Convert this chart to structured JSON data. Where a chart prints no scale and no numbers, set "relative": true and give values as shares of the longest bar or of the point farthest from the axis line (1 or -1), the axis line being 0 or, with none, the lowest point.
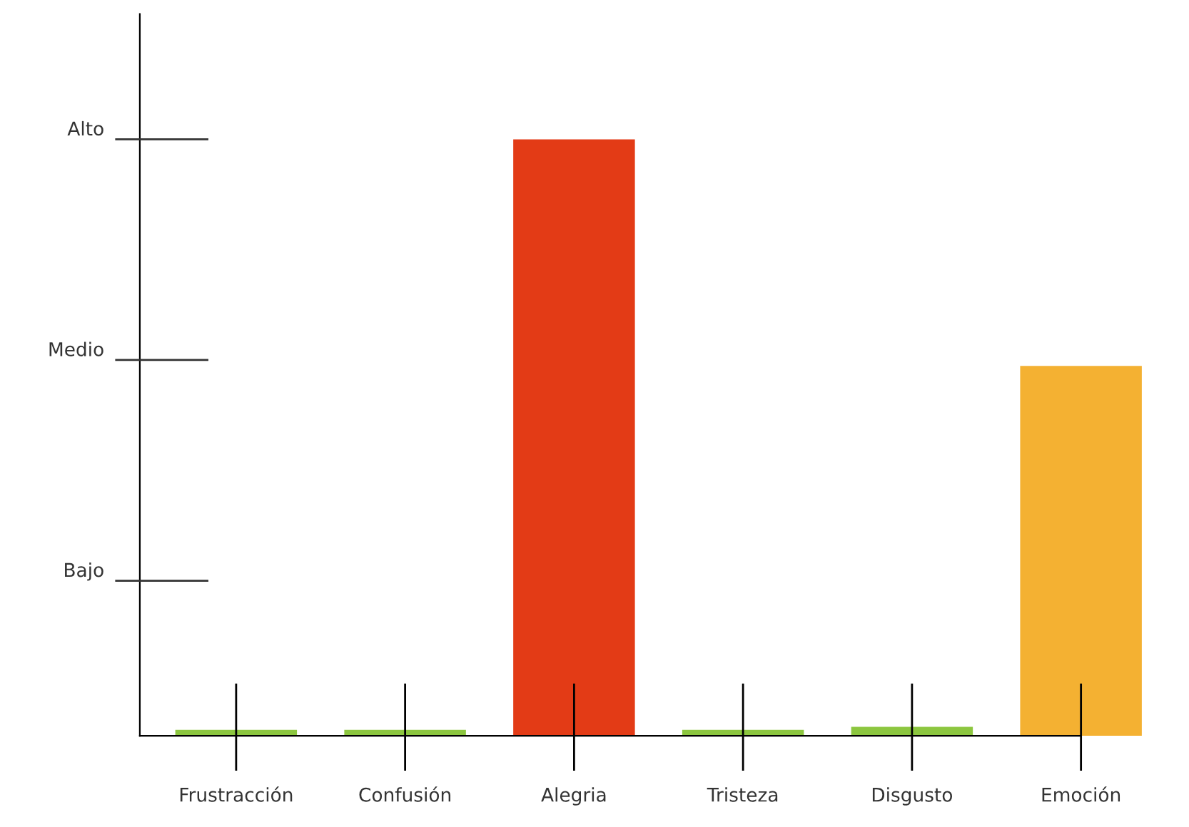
{
  "chart_data": {
    "type": "bar",
    "relative": true,
    "categories": [
      "Frustracción",
      "Confusión",
      "Alegria",
      "Tristeza",
      "Disgusto",
      "Emoción"
    ],
    "values": [
      0.01,
      0.01,
      1,
      0.01,
      0.015,
      0.62
    ],
    "colors": [
      "#8cc63f",
      "#8cc63f",
      "#e33b16",
      "#8cc63f",
      "#8cc63f",
      "#f4b132"
    ],
    "ref_lines": [
      {
        "axis": "y",
        "value": 0.26,
        "label": "Bajo",
        "color": "#333333"
      },
      {
        "axis": "y",
        "value": 0.63,
        "label": "Medio",
        "color": "#333333"
      },
      {
        "axis": "y",
        "value": 1,
        "label": "Alto",
        "color": "#333333"
      }
    ],
    "grid": false,
    "legend": false
  }
}
